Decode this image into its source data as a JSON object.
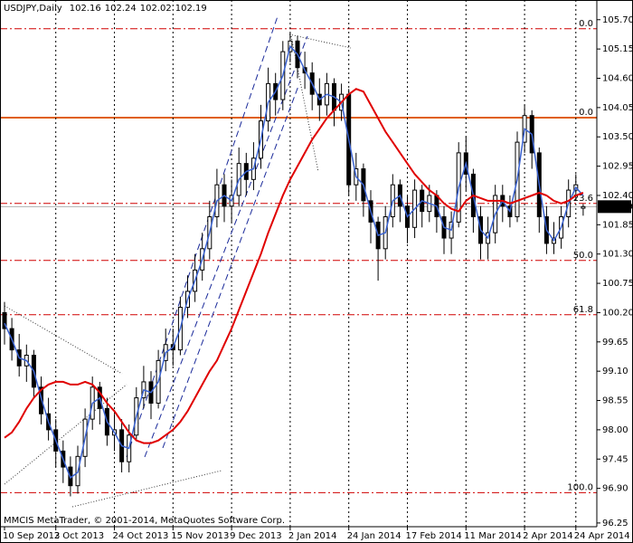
{
  "chart_data": {
    "type": "candlestick",
    "title": "USDJPY,Daily",
    "open": [
      100.2,
      99.9,
      99.5,
      99.2,
      99.4,
      98.8,
      98.3,
      98.0,
      97.6,
      97.3,
      96.95,
      97.5,
      98.2,
      98.8,
      98.4,
      97.9,
      98.0,
      97.4,
      97.9,
      98.6,
      98.9,
      98.5,
      99.3,
      99.6,
      99.5,
      100.3,
      100.6,
      101.0,
      101.4,
      102.0,
      102.6,
      102.2,
      102.4,
      103.0,
      102.7,
      103.1,
      103.8,
      104.5,
      104.2,
      105.1,
      105.3,
      104.8,
      104.7,
      104.3,
      104.1,
      104.5,
      104.0,
      104.3,
      102.6,
      102.9,
      102.3,
      101.9,
      101.4,
      102.0,
      102.6,
      102.2,
      101.8,
      102.5,
      102.1,
      102.4,
      102.0,
      101.6,
      101.9,
      103.2,
      102.8,
      102.0,
      101.5,
      101.7,
      102.4,
      102.2,
      102.0,
      103.4,
      103.9,
      103.2,
      102.0,
      101.5,
      101.6,
      102.0,
      102.5,
      102.16
    ],
    "high": [
      100.4,
      100.1,
      99.8,
      99.6,
      99.5,
      99.0,
      98.6,
      98.2,
      97.8,
      97.5,
      97.7,
      98.4,
      99.0,
      98.9,
      98.6,
      98.3,
      98.2,
      98.1,
      98.8,
      99.2,
      99.1,
      99.5,
      99.9,
      99.9,
      100.5,
      100.9,
      101.3,
      101.7,
      102.3,
      102.9,
      102.8,
      102.7,
      103.3,
      103.2,
      103.4,
      104.1,
      104.8,
      104.7,
      105.3,
      105.45,
      105.4,
      105.1,
      104.9,
      104.6,
      104.7,
      104.6,
      104.5,
      104.4,
      103.2,
      103.0,
      102.5,
      102.0,
      102.2,
      102.8,
      102.7,
      102.4,
      102.7,
      102.6,
      102.6,
      102.5,
      102.2,
      102.1,
      103.4,
      103.5,
      102.9,
      102.2,
      102.0,
      102.6,
      102.6,
      102.4,
      103.6,
      104.1,
      104.0,
      103.3,
      102.2,
      101.9,
      102.2,
      102.7,
      102.8,
      102.24
    ],
    "low": [
      99.6,
      99.3,
      99.0,
      98.9,
      98.6,
      98.1,
      97.8,
      97.3,
      97.0,
      96.75,
      96.8,
      97.3,
      98.0,
      98.1,
      97.7,
      97.6,
      97.2,
      97.2,
      97.8,
      98.4,
      98.2,
      98.4,
      99.1,
      99.2,
      99.4,
      100.1,
      100.4,
      100.8,
      101.2,
      101.8,
      101.9,
      101.9,
      102.2,
      102.4,
      102.5,
      102.9,
      103.6,
      103.9,
      104.0,
      104.9,
      104.6,
      104.4,
      104.0,
      103.8,
      103.9,
      103.7,
      103.8,
      102.4,
      102.3,
      102.0,
      101.5,
      100.8,
      101.2,
      101.8,
      101.9,
      101.5,
      101.6,
      101.8,
      101.9,
      101.7,
      101.3,
      101.3,
      101.8,
      102.5,
      101.7,
      101.2,
      101.2,
      101.5,
      101.9,
      101.8,
      101.9,
      103.2,
      102.9,
      101.7,
      101.3,
      101.3,
      101.4,
      101.8,
      102.3,
      102.02
    ],
    "close": [
      99.9,
      99.5,
      99.2,
      99.4,
      98.8,
      98.3,
      98.0,
      97.6,
      97.3,
      96.95,
      97.5,
      98.2,
      98.8,
      98.4,
      97.9,
      98.0,
      97.4,
      97.9,
      98.6,
      98.9,
      98.5,
      99.3,
      99.6,
      99.5,
      100.3,
      100.6,
      101.0,
      101.4,
      102.0,
      102.6,
      102.2,
      102.4,
      103.0,
      102.7,
      103.1,
      103.8,
      104.5,
      104.2,
      105.1,
      105.3,
      104.8,
      104.7,
      104.3,
      104.1,
      104.5,
      104.0,
      104.3,
      102.6,
      102.9,
      102.3,
      101.9,
      101.4,
      102.0,
      102.6,
      102.2,
      101.8,
      102.5,
      102.1,
      102.4,
      102.0,
      101.6,
      101.9,
      103.2,
      102.8,
      102.0,
      101.5,
      101.7,
      102.4,
      102.2,
      102.0,
      103.4,
      103.9,
      103.2,
      102.0,
      101.5,
      101.6,
      102.0,
      102.5,
      102.6,
      102.19
    ],
    "up_color": "#ffffff",
    "down_color": "#000000",
    "wick_color": "#000000",
    "series": [
      {
        "color": "#3a62d0",
        "values": [
          100.0,
          99.7,
          99.35,
          99.3,
          99.1,
          98.6,
          98.15,
          97.8,
          97.45,
          97.1,
          97.2,
          97.85,
          98.5,
          98.6,
          98.15,
          97.95,
          97.7,
          97.65,
          98.25,
          98.75,
          98.7,
          98.9,
          99.45,
          99.55,
          99.9,
          100.45,
          100.8,
          101.2,
          101.7,
          102.3,
          102.4,
          102.3,
          102.7,
          102.85,
          102.9,
          103.45,
          104.15,
          104.35,
          104.65,
          105.2,
          105.05,
          104.75,
          104.5,
          104.2,
          104.3,
          104.25,
          104.15,
          103.45,
          102.75,
          102.6,
          102.1,
          101.65,
          101.7,
          102.3,
          102.4,
          102.0,
          102.15,
          102.3,
          102.25,
          102.2,
          101.8,
          101.75,
          102.55,
          103.0,
          102.4,
          101.75,
          101.6,
          102.05,
          102.3,
          102.1,
          102.7,
          103.65,
          103.55,
          102.6,
          101.75,
          101.55,
          101.8,
          102.25,
          102.55,
          102.4
        ]
      },
      {
        "color": "#e00000",
        "values": [
          97.85,
          97.95,
          98.15,
          98.4,
          98.6,
          98.75,
          98.85,
          98.9,
          98.9,
          98.85,
          98.85,
          98.9,
          98.85,
          98.7,
          98.5,
          98.35,
          98.15,
          97.95,
          97.8,
          97.75,
          97.75,
          97.8,
          97.9,
          98.0,
          98.15,
          98.35,
          98.6,
          98.85,
          99.1,
          99.3,
          99.6,
          99.9,
          100.25,
          100.6,
          100.95,
          101.3,
          101.7,
          102.05,
          102.4,
          102.7,
          102.95,
          103.2,
          103.45,
          103.65,
          103.85,
          104.0,
          104.15,
          104.3,
          104.4,
          104.35,
          104.1,
          103.85,
          103.6,
          103.4,
          103.2,
          103.0,
          102.8,
          102.65,
          102.5,
          102.4,
          102.25,
          102.15,
          102.1,
          102.3,
          102.4,
          102.35,
          102.3,
          102.3,
          102.3,
          102.25,
          102.3,
          102.35,
          102.4,
          102.45,
          102.4,
          102.3,
          102.25,
          102.3,
          102.4,
          102.45
        ]
      }
    ],
    "ylim": [
      96.18,
      106.07
    ],
    "yticks": [
      {
        "value": 105.7,
        "label": "105.70"
      },
      105.15,
      {
        "value": 104.6,
        "label": "104.60"
      },
      104.05,
      {
        "value": 103.5,
        "label": "103.50"
      },
      102.95,
      {
        "value": 102.4,
        "label": "102.40"
      },
      101.85,
      {
        "value": 101.3,
        "label": "101.30"
      },
      100.75,
      {
        "value": 100.2,
        "label": "100.20"
      },
      99.65,
      {
        "value": 99.1,
        "label": "99.10"
      },
      98.55,
      {
        "value": 98.0,
        "label": "98.00"
      },
      97.45,
      {
        "value": 96.9,
        "label": "96.90"
      },
      96.25
    ],
    "xticks": [
      {
        "value": 0,
        "label": "10 Sep 2013"
      },
      {
        "value": 7,
        "label": "2 Oct 2013"
      },
      {
        "value": 15,
        "label": "24 Oct 2013"
      },
      {
        "value": 23,
        "label": "15 Nov 2013"
      },
      {
        "value": 31,
        "label": "9 Dec 2013"
      },
      {
        "value": 39,
        "label": "2 Jan 2014"
      },
      {
        "value": 47,
        "label": "24 Jan 2014"
      },
      {
        "value": 55,
        "label": "17 Feb 2014"
      },
      {
        "value": 63,
        "label": "11 Mar 2014"
      },
      {
        "value": 71,
        "label": "2 Apr 2014"
      },
      {
        "value": 78,
        "label": "24 Apr 2014"
      }
    ],
    "grid": true,
    "levels": [
      {
        "label": "0.0",
        "value": 105.53,
        "color": "#d00000",
        "style": "dashdot"
      },
      {
        "label": "0.0",
        "value": 103.86,
        "color": "#e06010",
        "style": "solid"
      },
      {
        "label": "23.6",
        "value": 102.25,
        "color": "#d00000",
        "style": "dashdot"
      },
      {
        "label": "50.0",
        "value": 101.18,
        "color": "#d00000",
        "style": "dashdot"
      },
      {
        "label": "61.8",
        "value": 100.16,
        "color": "#d00000",
        "style": "dashdot"
      },
      {
        "label": "100.0",
        "value": 96.82,
        "color": "#d00000",
        "style": "dashdot"
      }
    ],
    "price_line_color": "#b0b0b0",
    "footer": "MMCIS MetaTrader, © 2001-2014, MetaQuotes Software Corp."
  }
}
